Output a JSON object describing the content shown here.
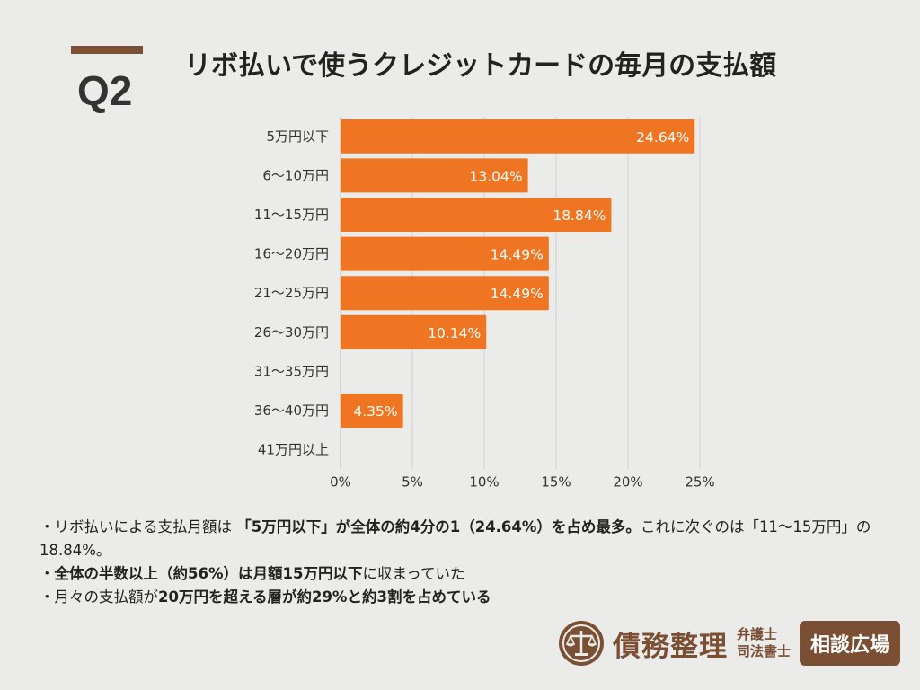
{
  "header": {
    "question": "Q2",
    "title": "リボ払いで使うクレジットカードの毎月の支払額"
  },
  "chart_data": {
    "type": "bar",
    "orientation": "horizontal",
    "categories": [
      "5万円以下",
      "6〜10万円",
      "11〜15万円",
      "16〜20万円",
      "21〜25万円",
      "26〜30万円",
      "31〜35万円",
      "36〜40万円",
      "41万円以上"
    ],
    "values": [
      24.64,
      13.04,
      18.84,
      14.49,
      14.49,
      10.14,
      0,
      4.35,
      0
    ],
    "data_labels": [
      "24.64%",
      "13.04%",
      "18.84%",
      "14.49%",
      "14.49%",
      "10.14%",
      "",
      "4.35%",
      ""
    ],
    "x_ticks": [
      "0%",
      "5%",
      "10%",
      "15%",
      "20%",
      "25%"
    ],
    "xlim": [
      0,
      25
    ],
    "grid": true,
    "bar_color": "#f07522",
    "title": "",
    "xlabel": "",
    "ylabel": ""
  },
  "notes": {
    "line1_a": "・リボ払いによる支払月額は",
    "line1_b": "「5万円以下」が全体の約4分の1（24.64%）を占め最多。",
    "line1_c": "これに次ぐのは「11〜15万円」の18.84%。",
    "line2_a": "・",
    "line2_b": "全体の半数以上（約56%）は月額15万円以下",
    "line2_c": "に収まっていた",
    "line3_a": "・月々の支払額が",
    "line3_b": "20万円を超える層が約29%と約3割を占めている"
  },
  "footer": {
    "logo_icon": "scales-of-justice-icon",
    "brand": "債務整理",
    "sub1": "弁護士",
    "sub2": "司法書士",
    "badge": "相談広場",
    "brand_color": "#7a4f34"
  }
}
